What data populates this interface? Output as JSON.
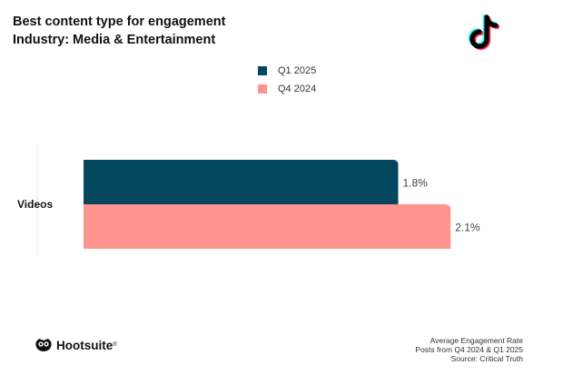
{
  "header": {
    "title": "Best content type for engagement",
    "subtitle": "Industry: Media & Entertainment"
  },
  "colors": {
    "q1_2025": "#03475f",
    "q4_2024": "#ff948f",
    "axis": "#e6e6e6",
    "text": "#333333"
  },
  "chart_data": {
    "type": "bar",
    "orientation": "horizontal",
    "categories": [
      "Videos"
    ],
    "series": [
      {
        "name": "Q1 2025",
        "values": [
          1.8
        ],
        "labels": [
          "1.8%"
        ],
        "color": "#03475f"
      },
      {
        "name": "Q4 2024",
        "values": [
          2.1
        ],
        "labels": [
          "2.1%"
        ],
        "color": "#ff948f"
      }
    ],
    "xlim": [
      0,
      2.4
    ],
    "unit": "%",
    "legend_position": "top-center",
    "grid": false
  },
  "footer": {
    "brand": "Hootsuite",
    "brand_mark": "®",
    "notes": [
      "Average Engagement Rate",
      "Posts from Q4 2024 & Q1 2025",
      "Source: Critical Truth"
    ]
  },
  "icons": {
    "platform": "tiktok-icon",
    "brand": "owl-icon"
  }
}
